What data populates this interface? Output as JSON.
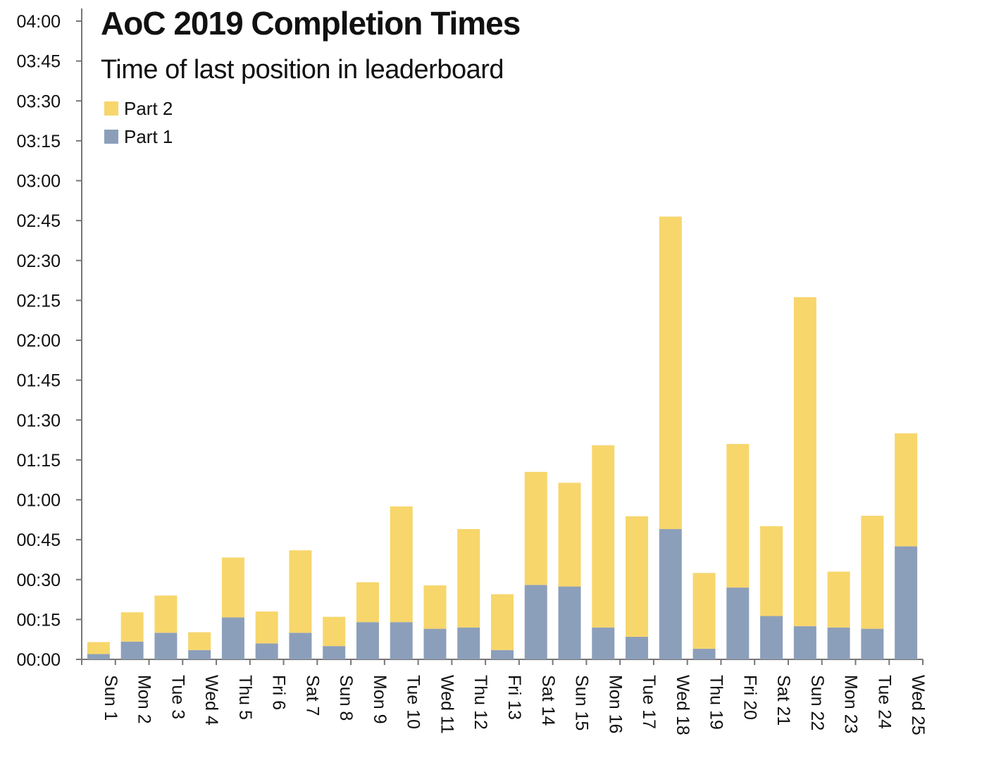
{
  "chart_data": {
    "type": "bar",
    "stacked": true,
    "title": "AoC 2019 Completion Times",
    "subtitle": "Time of last position in leaderboard",
    "categories": [
      "Sun 1",
      "Mon 2",
      "Tue 3",
      "Wed 4",
      "Thu 5",
      "Fri 6",
      "Sat 7",
      "Sun 8",
      "Mon 9",
      "Tue 10",
      "Wed 11",
      "Thu 12",
      "Fri 13",
      "Sat 14",
      "Sun 15",
      "Mon 16",
      "Tue 17",
      "Wed 18",
      "Thu 19",
      "Fri 20",
      "Sat 21",
      "Sun 22",
      "Mon 23",
      "Tue 24",
      "Wed 25"
    ],
    "y_unit": "minutes",
    "ylim": [
      0,
      240
    ],
    "yticks": [
      "00:00",
      "00:15",
      "00:30",
      "00:45",
      "01:00",
      "01:15",
      "01:30",
      "01:45",
      "02:00",
      "02:15",
      "02:30",
      "02:45",
      "03:00",
      "03:15",
      "03:30",
      "03:45",
      "04:00"
    ],
    "legend_position": "top-left",
    "grid": false,
    "series": [
      {
        "name": "Part 1",
        "color": "#8c9fba",
        "values": [
          2,
          6.7,
          10,
          3.5,
          15.8,
          6,
          10,
          5,
          14,
          14,
          11.5,
          12,
          3.5,
          28,
          27.4,
          12,
          8.5,
          49,
          4,
          27,
          16.3,
          12.5,
          12,
          11.5,
          42.5
        ]
      },
      {
        "name": "Part 2",
        "color": "#f7d66b",
        "values": [
          4.5,
          11,
          14,
          6.7,
          22.5,
          12,
          31,
          11,
          15,
          43.5,
          16.3,
          37,
          21,
          42.5,
          39,
          68.5,
          45.3,
          117.5,
          28.5,
          54,
          33.8,
          123.7,
          21,
          42.5,
          42.5
        ]
      }
    ]
  }
}
